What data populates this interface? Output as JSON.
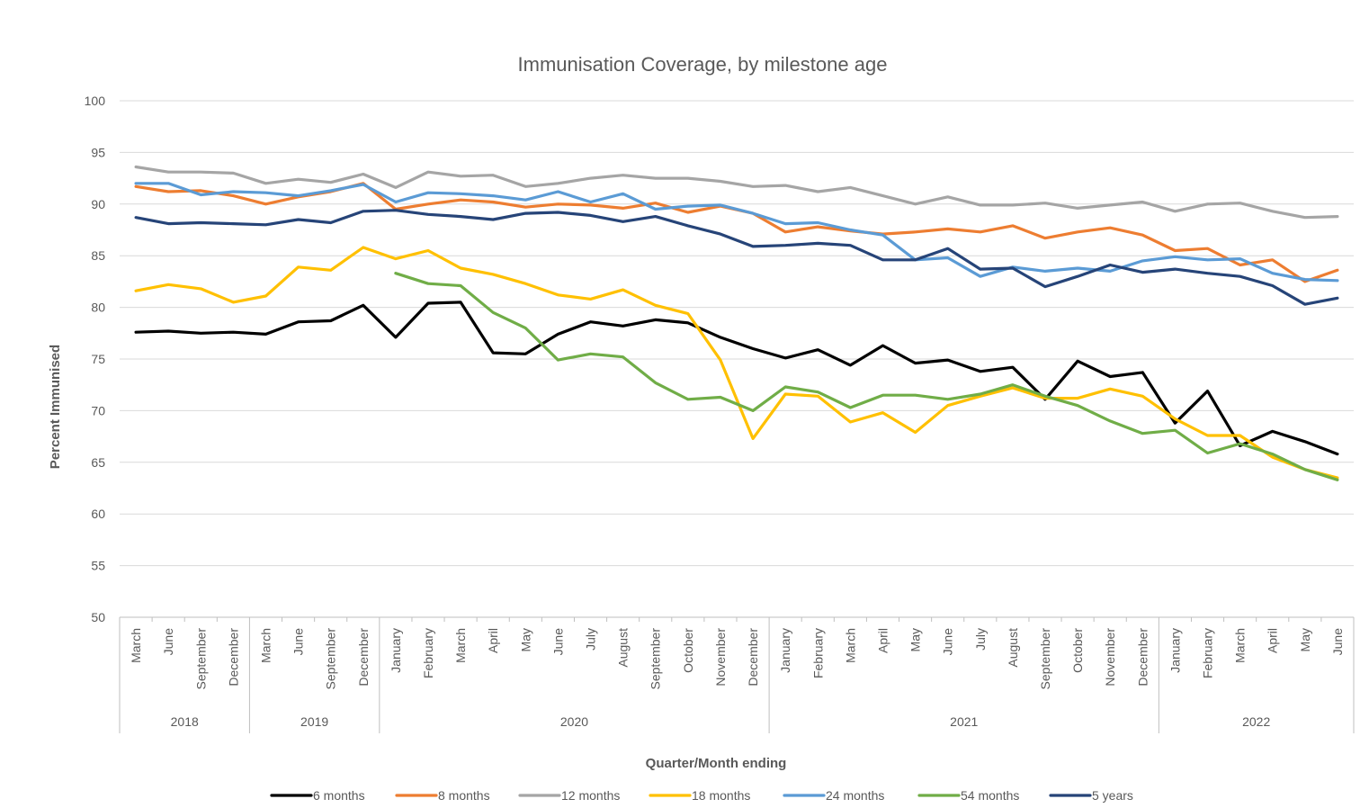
{
  "chart_data": {
    "type": "line",
    "title": "Immunisation Coverage, by milestone age",
    "xlabel": "Quarter/Month ending",
    "ylabel": "Percent Immunised",
    "ylim": [
      50,
      100
    ],
    "yticks": [
      "100",
      "95",
      "90",
      "85",
      "80",
      "75",
      "70",
      "65",
      "60",
      "55",
      "50"
    ],
    "grid": true,
    "legend_position": "bottom",
    "categories": [
      "March",
      "June",
      "September",
      "December",
      "March",
      "June",
      "September",
      "December",
      "January",
      "February",
      "March",
      "April",
      "May",
      "June",
      "July",
      "August",
      "September",
      "October",
      "November",
      "December",
      "January",
      "February",
      "March",
      "April",
      "May",
      "June",
      "July",
      "August",
      "September",
      "October",
      "November",
      "December",
      "January",
      "February",
      "March",
      "April",
      "May",
      "June"
    ],
    "groups": [
      {
        "label": "2018",
        "count": 4
      },
      {
        "label": "2019",
        "count": 4
      },
      {
        "label": "2020",
        "count": 12
      },
      {
        "label": "2021",
        "count": 12
      },
      {
        "label": "2022",
        "count": 6
      }
    ],
    "series": [
      {
        "name": "6 months",
        "color": "#000000",
        "values": [
          77.6,
          77.7,
          77.5,
          77.6,
          77.4,
          78.6,
          78.7,
          80.2,
          77.1,
          80.4,
          80.5,
          75.6,
          75.5,
          77.4,
          78.6,
          78.2,
          78.8,
          78.5,
          77.1,
          76.0,
          75.1,
          75.9,
          74.4,
          76.3,
          74.6,
          74.9,
          73.8,
          74.2,
          71.1,
          74.8,
          73.3,
          73.7,
          68.8,
          71.9,
          66.6,
          68.0,
          67.0,
          65.8
        ]
      },
      {
        "name": "8 months",
        "color": "#ED7D31",
        "values": [
          91.7,
          91.2,
          91.3,
          90.8,
          90.0,
          90.7,
          91.2,
          92.0,
          89.5,
          90.0,
          90.4,
          90.2,
          89.7,
          90.0,
          89.9,
          89.6,
          90.1,
          89.2,
          89.8,
          89.1,
          87.3,
          87.8,
          87.4,
          87.1,
          87.3,
          87.6,
          87.3,
          87.9,
          86.7,
          87.3,
          87.7,
          87.0,
          85.5,
          85.7,
          84.1,
          84.6,
          82.5,
          83.6
        ]
      },
      {
        "name": "12 months",
        "color": "#A5A5A5",
        "values": [
          93.6,
          93.1,
          93.1,
          93.0,
          92.0,
          92.4,
          92.1,
          92.9,
          91.6,
          93.1,
          92.7,
          92.8,
          91.7,
          92.0,
          92.5,
          92.8,
          92.5,
          92.5,
          92.2,
          91.7,
          91.8,
          91.2,
          91.6,
          90.8,
          90.0,
          90.7,
          89.9,
          89.9,
          90.1,
          89.6,
          89.9,
          90.2,
          89.3,
          90.0,
          90.1,
          89.3,
          88.7,
          88.8
        ]
      },
      {
        "name": "18 months",
        "color": "#FFC000",
        "values": [
          81.6,
          82.2,
          81.8,
          80.5,
          81.1,
          83.9,
          83.6,
          85.8,
          84.7,
          85.5,
          83.8,
          83.2,
          82.3,
          81.2,
          80.8,
          81.7,
          80.2,
          79.4,
          74.9,
          67.3,
          71.6,
          71.4,
          68.9,
          69.8,
          67.9,
          70.5,
          71.4,
          72.2,
          71.2,
          71.2,
          72.1,
          71.4,
          69.2,
          67.6,
          67.6,
          65.5,
          64.3,
          63.5
        ]
      },
      {
        "name": "24 months",
        "color": "#5B9BD5",
        "values": [
          92.0,
          92.0,
          90.9,
          91.2,
          91.1,
          90.8,
          91.3,
          91.9,
          90.2,
          91.1,
          91.0,
          90.8,
          90.4,
          91.2,
          90.2,
          91.0,
          89.5,
          89.8,
          89.9,
          89.1,
          88.1,
          88.2,
          87.5,
          87.0,
          84.6,
          84.8,
          83.0,
          83.9,
          83.5,
          83.8,
          83.5,
          84.5,
          84.9,
          84.6,
          84.7,
          83.3,
          82.7,
          82.6
        ]
      },
      {
        "name": "54 months",
        "color": "#70AD47",
        "values": [
          null,
          null,
          null,
          null,
          null,
          null,
          null,
          null,
          83.3,
          82.3,
          82.1,
          79.5,
          78.0,
          74.9,
          75.5,
          75.2,
          72.7,
          71.1,
          71.3,
          70.0,
          72.3,
          71.8,
          70.3,
          71.5,
          71.5,
          71.1,
          71.6,
          72.5,
          71.4,
          70.5,
          69.0,
          67.8,
          68.1,
          65.9,
          66.8,
          65.8,
          64.3,
          63.3
        ]
      },
      {
        "name": "5 years",
        "color": "#264478",
        "values": [
          88.7,
          88.1,
          88.2,
          88.1,
          88.0,
          88.5,
          88.2,
          89.3,
          89.4,
          89.0,
          88.8,
          88.5,
          89.1,
          89.2,
          88.9,
          88.3,
          88.8,
          87.9,
          87.1,
          85.9,
          86.0,
          86.2,
          86.0,
          84.6,
          84.6,
          85.7,
          83.7,
          83.8,
          82.0,
          83.0,
          84.1,
          83.4,
          83.7,
          83.3,
          83.0,
          82.1,
          80.3,
          80.9
        ]
      }
    ]
  }
}
